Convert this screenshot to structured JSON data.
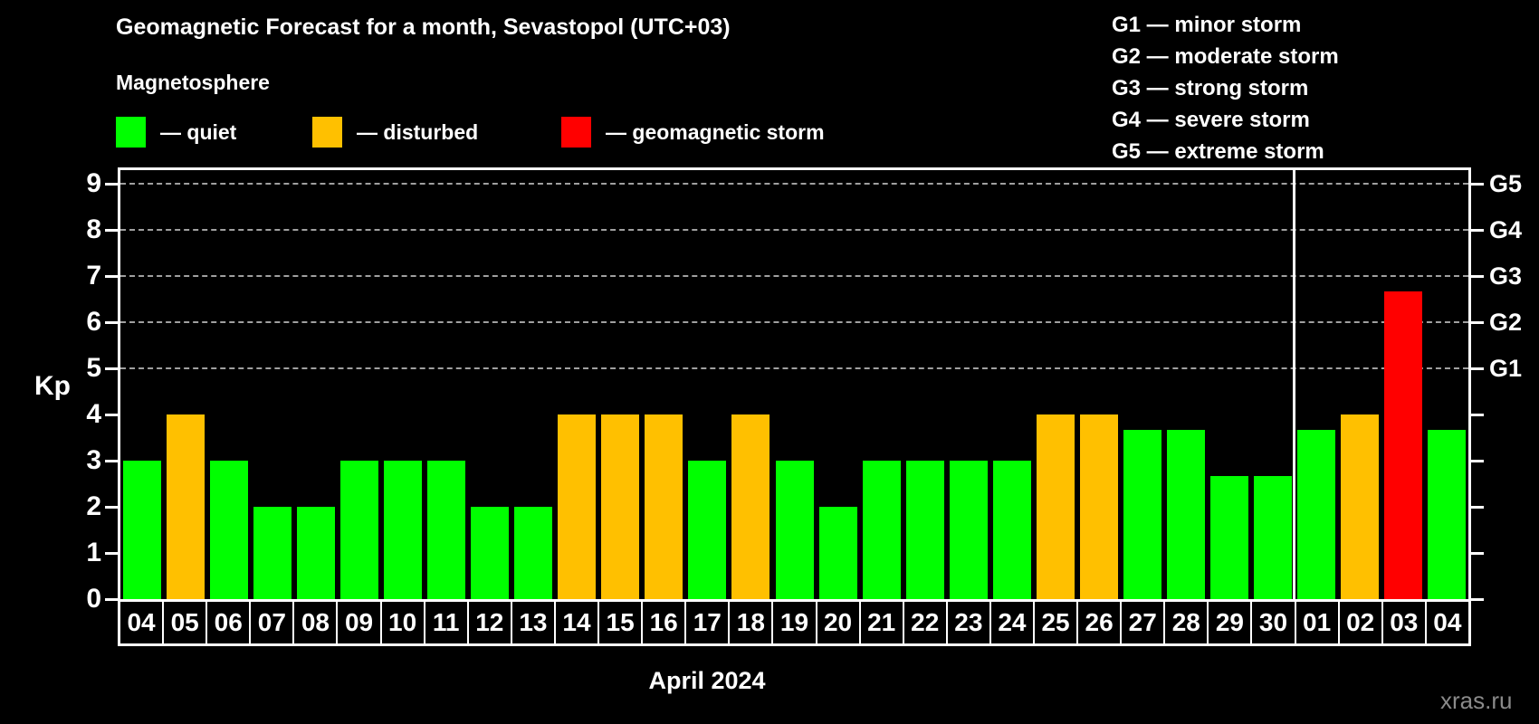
{
  "title": "Geomagnetic Forecast for a month, Sevastopol (UTC+03)",
  "subtitle": "Magnetosphere",
  "legend": {
    "items": [
      {
        "key": "quiet",
        "label": "— quiet"
      },
      {
        "key": "disturbed",
        "label": "— disturbed"
      },
      {
        "key": "storm",
        "label": "— geomagnetic storm"
      }
    ]
  },
  "g_legend": {
    "lines": [
      "G1 — minor storm",
      "G2 — moderate storm",
      "G3 — strong storm",
      "G4 — severe storm",
      "G5 — extreme storm"
    ]
  },
  "colors": {
    "quiet": "#00ff00",
    "disturbed": "#ffc000",
    "storm": "#ff0000",
    "background": "#000000",
    "axis": "#ffffff",
    "gridline": "#a0a0a0",
    "watermark": "#8a8a8a"
  },
  "chart_data": {
    "type": "bar",
    "title": "Geomagnetic Forecast for a month, Sevastopol (UTC+03)",
    "xlabel": "April 2024",
    "ylabel": "Kp",
    "ylim": [
      0,
      9.35
    ],
    "yticks": [
      0,
      1,
      2,
      3,
      4,
      5,
      6,
      7,
      8,
      9
    ],
    "gridlines_at": [
      5,
      6,
      7,
      8,
      9
    ],
    "grid": "dashed, only at storm levels G1–G5",
    "legend_position": "top-left",
    "right_axis": [
      {
        "value": 5,
        "label": "G1"
      },
      {
        "value": 6,
        "label": "G2"
      },
      {
        "value": 7,
        "label": "G3"
      },
      {
        "value": 8,
        "label": "G4"
      },
      {
        "value": 9,
        "label": "G5"
      }
    ],
    "categories": [
      "04",
      "05",
      "06",
      "07",
      "08",
      "09",
      "10",
      "11",
      "12",
      "13",
      "14",
      "15",
      "16",
      "17",
      "18",
      "19",
      "20",
      "21",
      "22",
      "23",
      "24",
      "25",
      "26",
      "27",
      "28",
      "29",
      "30",
      "01",
      "02",
      "03",
      "04"
    ],
    "values": [
      3,
      4,
      3,
      2,
      2,
      3,
      3,
      3,
      2,
      2,
      4,
      4,
      4,
      3,
      4,
      3,
      2,
      3,
      3,
      3,
      3,
      4,
      4,
      3.67,
      3.67,
      2.67,
      2.67,
      3.67,
      4,
      6.67,
      3.67
    ],
    "statuses": [
      "quiet",
      "disturbed",
      "quiet",
      "quiet",
      "quiet",
      "quiet",
      "quiet",
      "quiet",
      "quiet",
      "quiet",
      "disturbed",
      "disturbed",
      "disturbed",
      "quiet",
      "disturbed",
      "quiet",
      "quiet",
      "quiet",
      "quiet",
      "quiet",
      "quiet",
      "disturbed",
      "disturbed",
      "quiet",
      "quiet",
      "quiet",
      "quiet",
      "quiet",
      "disturbed",
      "storm",
      "quiet"
    ],
    "month_boundary_after_index": 26
  },
  "xlabel": "April 2024",
  "watermark": "xras.ru"
}
